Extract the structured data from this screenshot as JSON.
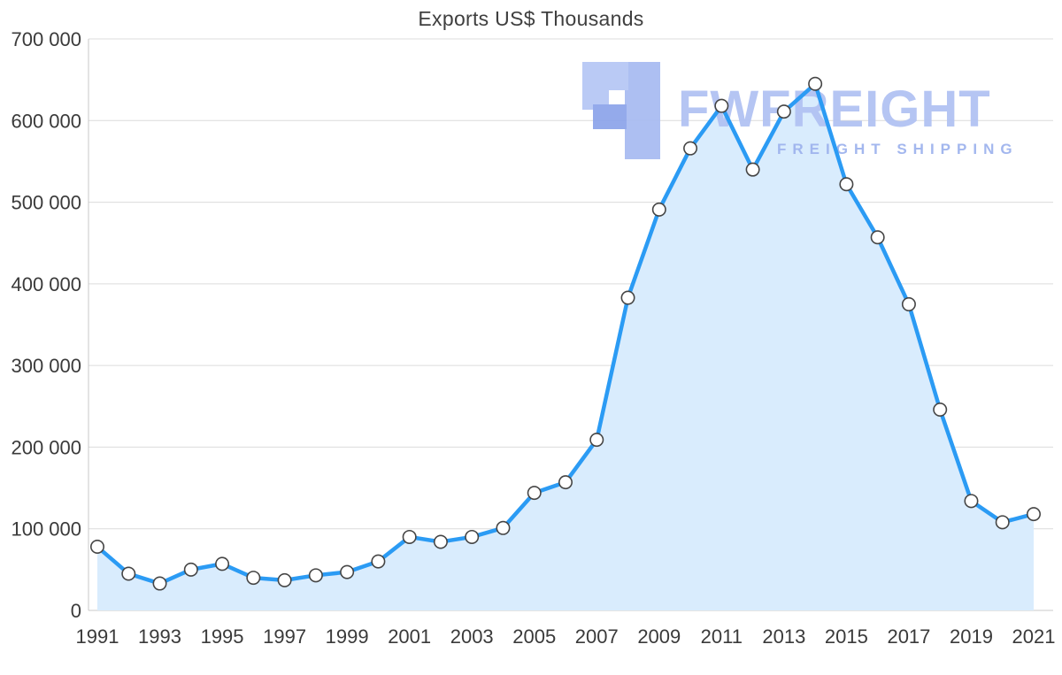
{
  "title": "Exports US$ Thousands",
  "watermark": {
    "brand": "FWFREIGHT",
    "tagline": "FREIGHT SHIPPING"
  },
  "chart_data": {
    "type": "area",
    "title": "Exports US$ Thousands",
    "x": [
      1991,
      1992,
      1993,
      1994,
      1995,
      1996,
      1997,
      1998,
      1999,
      2000,
      2001,
      2002,
      2003,
      2004,
      2005,
      2006,
      2007,
      2008,
      2009,
      2010,
      2011,
      2012,
      2013,
      2014,
      2015,
      2016,
      2017,
      2018,
      2019,
      2020,
      2021
    ],
    "series": [
      {
        "name": "Exports US$ Thousands",
        "values": [
          78000,
          45000,
          33000,
          50000,
          57000,
          40000,
          37000,
          43000,
          47000,
          60000,
          90000,
          84000,
          90000,
          101000,
          144000,
          157000,
          209000,
          383000,
          491000,
          566000,
          618000,
          540000,
          611000,
          645000,
          522000,
          457000,
          375000,
          246000,
          134000,
          108000,
          118000
        ]
      }
    ],
    "ylim": [
      0,
      700000
    ],
    "y_ticks": [
      0,
      100000,
      200000,
      300000,
      400000,
      500000,
      600000,
      700000
    ],
    "y_tick_labels": [
      "0",
      "100 000",
      "200 000",
      "300 000",
      "400 000",
      "500 000",
      "600 000",
      "700 000"
    ],
    "x_tick_labels": [
      "1991",
      "1993",
      "1995",
      "1997",
      "1999",
      "2001",
      "2003",
      "2005",
      "2007",
      "2009",
      "2011",
      "2013",
      "2015",
      "2017",
      "2019",
      "2021"
    ],
    "x_tick_step": 2,
    "grid": true,
    "legend": false,
    "colors": {
      "line": "#2b9bf4",
      "fill": "#d9ecfd",
      "marker_fill": "#ffffff",
      "marker_stroke": "#454545",
      "grid": "#dcdcdc",
      "axis_line": "#c8c8c8",
      "axis_text": "#3a3a3a",
      "watermark_light": "#b7c8f5",
      "watermark_mid": "#a9bcf2",
      "watermark_dark": "#8fa6ea"
    }
  }
}
